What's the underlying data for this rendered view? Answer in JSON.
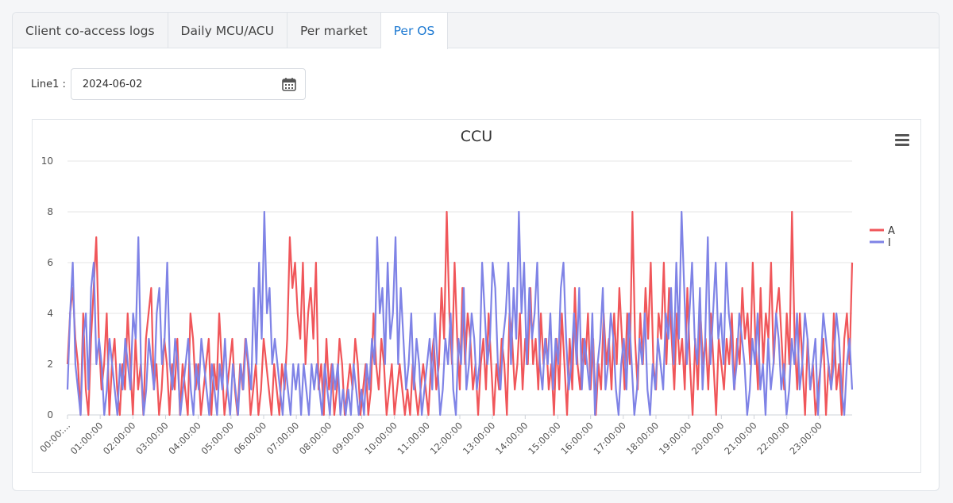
{
  "tabs": [
    {
      "label": "Client co-access logs",
      "active": false
    },
    {
      "label": "Daily MCU/ACU",
      "active": false
    },
    {
      "label": "Per market",
      "active": false
    },
    {
      "label": "Per OS",
      "active": true
    }
  ],
  "date_filter": {
    "label": "Line1 :",
    "value": "2024-06-02",
    "icon": "calendar-icon"
  },
  "chart_menu_icon": "hamburger-menu-icon",
  "colors": {
    "accent": "#1e7ad2",
    "series_a": "#f0565a",
    "series_i": "#7f83e6"
  },
  "chart_data": {
    "type": "line",
    "title": "CCU",
    "xlabel": "",
    "ylabel": "",
    "ylim": [
      0,
      10
    ],
    "yticks": [
      0,
      2,
      4,
      6,
      8,
      10
    ],
    "xlim": [
      "00:00:00",
      "24:00:00"
    ],
    "x_tick_labels": [
      "00:00:...",
      "01:00:00",
      "02:00:00",
      "03:00:00",
      "04:00:00",
      "05:00:00",
      "06:00:00",
      "07:00:00",
      "08:00:00",
      "09:00:00",
      "10:00:00",
      "11:00:00",
      "12:00:00",
      "13:00:00",
      "14:00:00",
      "15:00:00",
      "16:00:00",
      "17:00:00",
      "18:00:00",
      "19:00:00",
      "20:00:00",
      "21:00:00",
      "22:00:00",
      "23:00:00"
    ],
    "sample_interval": "5 min",
    "legend_position": "right",
    "grid": true,
    "series": [
      {
        "name": "A",
        "color": "#f0565a",
        "values": [
          2,
          4,
          5,
          3,
          2,
          0,
          4,
          1,
          0,
          3,
          5,
          7,
          3,
          1,
          2,
          4,
          0,
          2,
          3,
          1,
          0,
          2,
          1,
          4,
          2,
          0,
          3,
          1,
          2,
          0,
          3,
          4,
          5,
          1,
          2,
          0,
          1,
          3,
          2,
          0,
          2,
          1,
          3,
          0,
          2,
          1,
          0,
          4,
          3,
          1,
          2,
          0,
          1,
          2,
          3,
          0,
          2,
          1,
          4,
          2,
          0,
          1,
          2,
          3,
          1,
          0,
          2,
          1,
          3,
          2,
          0,
          1,
          2,
          0,
          1,
          3,
          2,
          1,
          0,
          2,
          1,
          0,
          2,
          1,
          3,
          7,
          5,
          6,
          4,
          3,
          6,
          2,
          4,
          5,
          3,
          6,
          1,
          2,
          0,
          3,
          1,
          2,
          0,
          1,
          3,
          2,
          0,
          1,
          2,
          1,
          3,
          2,
          0,
          1,
          2,
          0,
          1,
          4,
          2,
          1,
          3,
          2,
          0,
          1,
          2,
          0,
          1,
          2,
          1,
          0,
          1,
          0,
          2,
          1,
          0,
          1,
          2,
          1,
          0,
          2,
          3,
          1,
          2,
          5,
          3,
          8,
          4,
          2,
          6,
          3,
          1,
          5,
          2,
          4,
          3,
          1,
          2,
          0,
          2,
          3,
          1,
          4,
          2,
          0,
          2,
          1,
          3,
          2,
          0,
          4,
          3,
          1,
          2,
          4,
          1,
          3,
          2,
          5,
          2,
          3,
          1,
          4,
          2,
          3,
          1,
          2,
          0,
          3,
          1,
          4,
          2,
          0,
          3,
          1,
          5,
          2,
          1,
          3,
          2,
          4,
          1,
          3,
          0,
          2,
          1,
          4,
          2,
          3,
          1,
          4,
          2,
          5,
          3,
          1,
          4,
          2,
          8,
          3,
          1,
          4,
          2,
          5,
          3,
          6,
          2,
          1,
          4,
          3,
          6,
          2,
          5,
          3,
          1,
          4,
          2,
          3,
          1,
          5,
          2,
          0,
          3,
          1,
          4,
          2,
          3,
          1,
          4,
          2,
          0,
          3,
          2,
          1,
          3,
          2,
          4,
          1,
          3,
          2,
          5,
          3,
          4,
          2,
          6,
          3,
          1,
          5,
          2,
          4,
          3,
          6,
          2,
          4,
          5,
          3,
          1,
          4,
          2,
          8,
          3,
          1,
          4,
          2,
          0,
          3,
          1,
          2,
          0,
          1,
          2,
          3,
          0,
          2,
          1,
          4,
          1,
          2,
          0,
          3,
          4,
          2,
          6
        ]
      },
      {
        "name": "I",
        "color": "#7f83e6",
        "values": [
          1,
          4,
          6,
          2,
          1,
          0,
          3,
          4,
          1,
          5,
          6,
          2,
          3,
          2,
          0,
          1,
          3,
          2,
          1,
          0,
          2,
          1,
          3,
          2,
          1,
          4,
          3,
          7,
          2,
          0,
          1,
          3,
          2,
          1,
          4,
          5,
          2,
          3,
          6,
          2,
          1,
          3,
          2,
          0,
          1,
          2,
          3,
          1,
          0,
          2,
          1,
          3,
          2,
          1,
          0,
          2,
          1,
          0,
          2,
          1,
          3,
          1,
          0,
          2,
          1,
          0,
          2,
          1,
          3,
          2,
          1,
          5,
          2,
          6,
          3,
          8,
          4,
          5,
          2,
          3,
          2,
          1,
          0,
          2,
          1,
          0,
          2,
          1,
          2,
          0,
          2,
          1,
          0,
          2,
          1,
          2,
          1,
          0,
          2,
          1,
          0,
          2,
          1,
          2,
          0,
          1,
          0,
          1,
          0,
          2,
          1,
          0,
          1,
          0,
          2,
          1,
          3,
          2,
          7,
          4,
          5,
          2,
          6,
          3,
          4,
          7,
          2,
          5,
          3,
          1,
          2,
          4,
          1,
          3,
          2,
          0,
          1,
          2,
          3,
          1,
          4,
          2,
          0,
          1,
          3,
          2,
          4,
          1,
          0,
          3,
          2,
          5,
          1,
          2,
          4,
          3,
          1,
          2,
          6,
          4,
          2,
          3,
          6,
          5,
          2,
          1,
          3,
          4,
          6,
          2,
          5,
          3,
          8,
          4,
          6,
          2,
          5,
          3,
          4,
          6,
          2,
          1,
          3,
          2,
          4,
          1,
          3,
          2,
          5,
          6,
          3,
          1,
          2,
          4,
          2,
          5,
          1,
          3,
          2,
          1,
          4,
          0,
          2,
          3,
          5,
          1,
          2,
          4,
          3,
          1,
          0,
          2,
          3,
          1,
          4,
          2,
          0,
          1,
          3,
          2,
          4,
          1,
          0,
          2,
          1,
          3,
          2,
          1,
          4,
          3,
          5,
          2,
          6,
          3,
          8,
          5,
          2,
          4,
          6,
          3,
          2,
          5,
          1,
          3,
          7,
          2,
          4,
          6,
          3,
          4,
          2,
          6,
          4,
          3,
          1,
          2,
          4,
          3,
          2,
          0,
          1,
          3,
          2,
          4,
          1,
          2,
          0,
          3,
          1,
          2,
          4,
          3,
          1,
          2,
          0,
          1,
          3,
          2,
          4,
          1,
          2,
          4,
          3,
          1,
          2,
          3,
          0,
          2,
          4,
          3,
          2,
          1,
          2,
          4,
          3,
          1,
          0,
          2,
          3,
          1
        ]
      }
    ]
  }
}
